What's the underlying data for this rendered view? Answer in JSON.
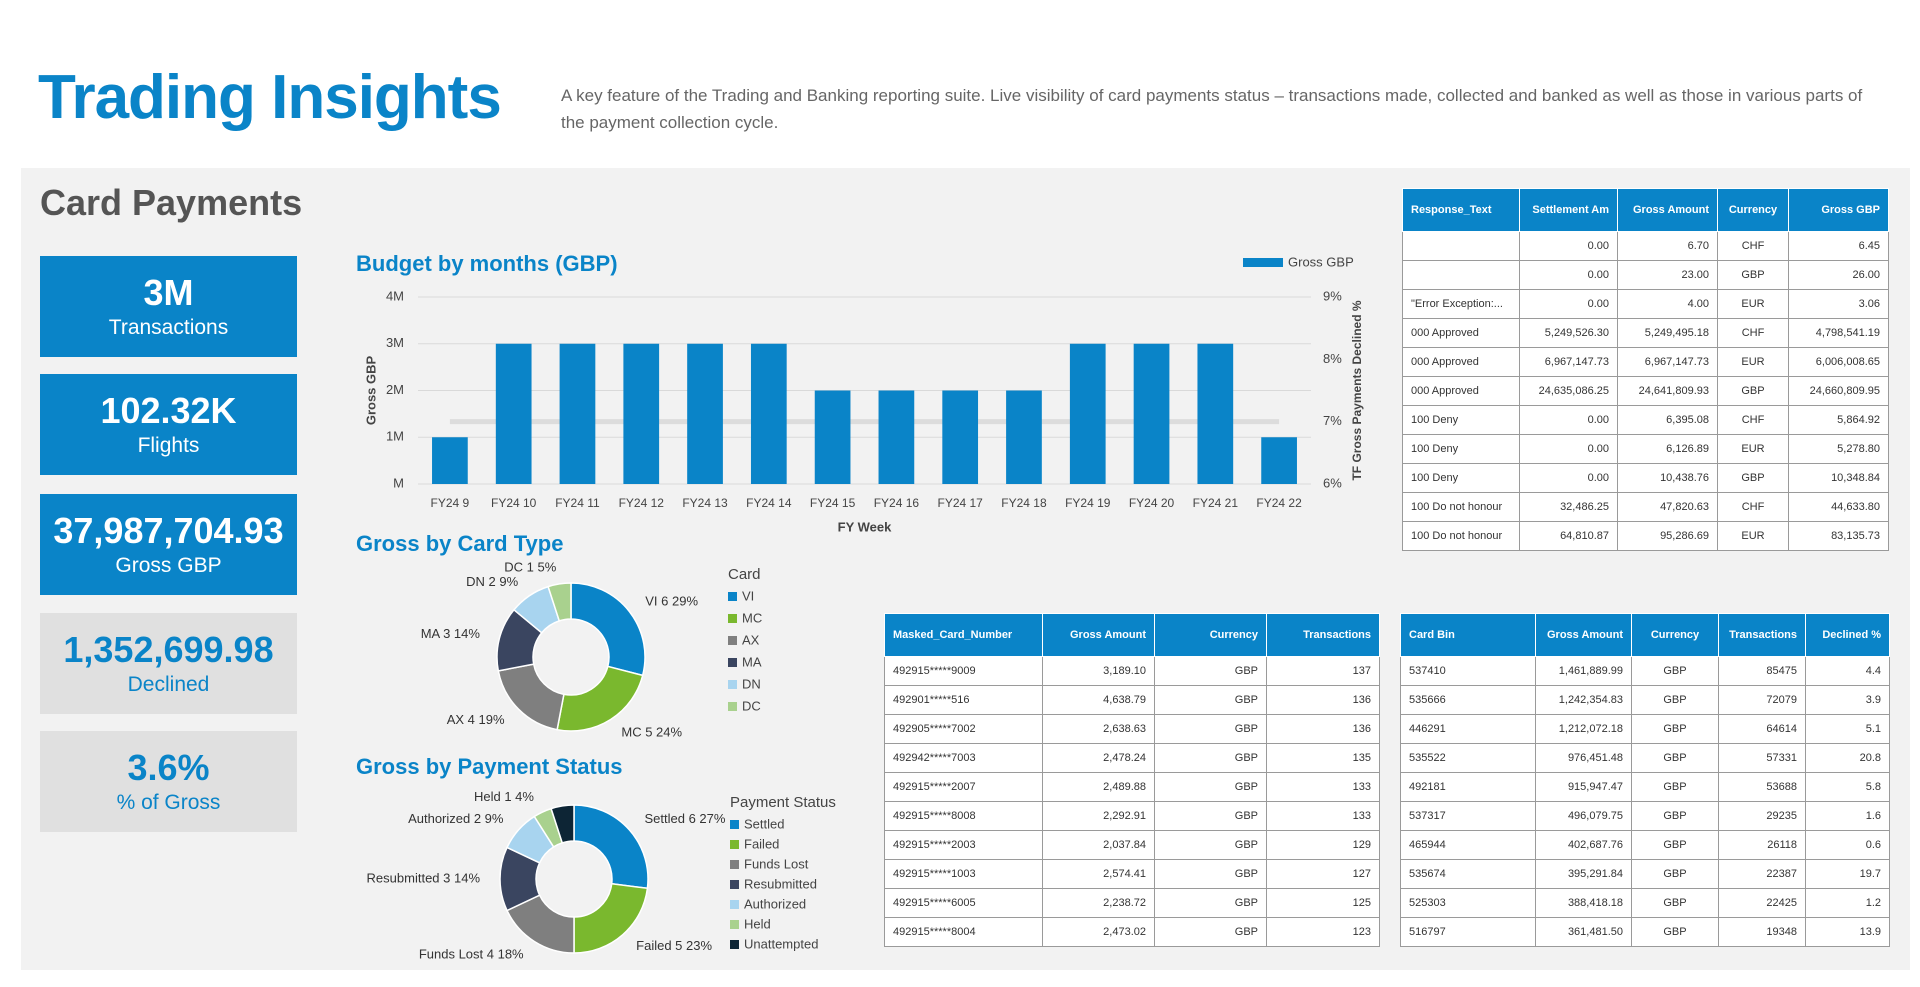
{
  "header": {
    "title": "Trading Insights",
    "description": "A key feature of the Trading and Banking reporting suite. Live visibility of card payments status – transactions made, collected and banked as well as those in various parts of the payment collection cycle."
  },
  "section_title": "Card Payments",
  "kpis": [
    {
      "value": "3M",
      "label": "Transactions"
    },
    {
      "value": "102.32K",
      "label": "Flights"
    },
    {
      "value": "37,987,704.93",
      "label": "Gross GBP"
    },
    {
      "value": "1,352,699.98",
      "label": "Declined"
    },
    {
      "value": "3.6%",
      "label": "% of Gross"
    }
  ],
  "chart_data": [
    {
      "type": "bar",
      "title": "Budget by months (GBP)",
      "categories": [
        "FY24 9",
        "FY24 10",
        "FY24 11",
        "FY24 12",
        "FY24 13",
        "FY24 14",
        "FY24 15",
        "FY24 16",
        "FY24 17",
        "FY24 18",
        "FY24 19",
        "FY24 20",
        "FY24 21",
        "FY24 22"
      ],
      "series": [
        {
          "name": "Gross GBP",
          "color": "#0a84c8",
          "values": [
            1000000,
            3000000,
            3000000,
            3000000,
            3000000,
            3000000,
            2000000,
            2000000,
            2000000,
            2000000,
            3000000,
            3000000,
            3000000,
            1000000
          ]
        },
        {
          "color": "#dcdcdc",
          "axis": "y2",
          "type": "line",
          "values": [
            7,
            7,
            7,
            7,
            7,
            7,
            7,
            7,
            7,
            7,
            7,
            7,
            7,
            7
          ]
        }
      ],
      "x_label": "FY Week",
      "y_label": "Gross GBP",
      "y2_label": "TF Gross Payments Declined %",
      "ylim": [
        0,
        4000000
      ],
      "yticks": [
        {
          "value": 0,
          "label": "M"
        },
        {
          "value": 1000000,
          "label": "1M"
        },
        {
          "value": 2000000,
          "label": "2M"
        },
        {
          "value": 3000000,
          "label": "3M"
        },
        {
          "value": 4000000,
          "label": "4M"
        }
      ],
      "y2lim": [
        6,
        9
      ],
      "y2ticks": [
        {
          "value": 6,
          "label": "6%"
        },
        {
          "value": 7,
          "label": "7%"
        },
        {
          "value": 8,
          "label": "8%"
        },
        {
          "value": 9,
          "label": "9%"
        }
      ],
      "grid": true,
      "legend": "top-right"
    },
    {
      "type": "pie",
      "title": "Gross by Card Type",
      "legend_title": "Card",
      "categories": [
        "VI",
        "MC",
        "AX",
        "MA",
        "DN",
        "DC"
      ],
      "values": [
        29,
        24,
        19,
        14,
        9,
        5
      ],
      "value_labels": [
        "VI 6 29%",
        "MC 5 24%",
        "AX 4 19%",
        "MA 3 14%",
        "DN 2 9%",
        "DC 1 5%"
      ],
      "colors": [
        "#0a84c8",
        "#7ab82e",
        "#7f7f7f",
        "#3a4560",
        "#a8d4ef",
        "#a9d18e"
      ]
    },
    {
      "type": "pie",
      "title": "Gross by Payment Status",
      "legend_title": "Payment Status",
      "categories": [
        "Settled",
        "Failed",
        "Funds Lost",
        "Resubmitted",
        "Authorized",
        "Held",
        "Unattempted"
      ],
      "values": [
        27,
        23,
        18,
        14,
        9,
        4,
        5
      ],
      "value_labels": [
        "Settled 6 27%",
        "Failed 5 23%",
        "Funds Lost 4 18%",
        "Resubmitted 3 14%",
        "Authorized 2 9%",
        "Held 1 4%",
        null
      ],
      "colors": [
        "#0a84c8",
        "#7ab82e",
        "#7f7f7f",
        "#3a4560",
        "#a8d4ef",
        "#a9d18e",
        "#0d2535"
      ]
    }
  ],
  "tables": [
    {
      "columns": [
        "Response_Text",
        "Settlement Am",
        "Gross Amount",
        "Currency",
        "Gross GBP"
      ],
      "rows": [
        [
          null,
          "0.00",
          "6.70",
          "CHF",
          "6.45"
        ],
        [
          null,
          "0.00",
          "23.00",
          "GBP",
          "26.00"
        ],
        [
          "\"Error Exception:...",
          "0.00",
          "4.00",
          "EUR",
          "3.06"
        ],
        [
          "000 Approved",
          "5,249,526.30",
          "5,249,495.18",
          "CHF",
          "4,798,541.19"
        ],
        [
          "000 Approved",
          "6,967,147.73",
          "6,967,147.73",
          "EUR",
          "6,006,008.65"
        ],
        [
          "000 Approved",
          "24,635,086.25",
          "24,641,809.93",
          "GBP",
          "24,660,809.95"
        ],
        [
          "100 Deny",
          "0.00",
          "6,395.08",
          "CHF",
          "5,864.92"
        ],
        [
          "100 Deny",
          "0.00",
          "6,126.89",
          "EUR",
          "5,278.80"
        ],
        [
          "100 Deny",
          "0.00",
          "10,438.76",
          "GBP",
          "10,348.84"
        ],
        [
          "100 Do not honour",
          "32,486.25",
          "47,820.63",
          "CHF",
          "44,633.80"
        ],
        [
          "100 Do not honour",
          "64,810.87",
          "95,286.69",
          "EUR",
          "83,135.73"
        ]
      ]
    },
    {
      "columns": [
        "Masked_Card_Number",
        "Gross Amount",
        "Currency",
        "Transactions"
      ],
      "rows": [
        [
          "492915*****9009",
          "3,189.10",
          "GBP",
          "137"
        ],
        [
          "492901*****516",
          "4,638.79",
          "GBP",
          "136"
        ],
        [
          "492905*****7002",
          "2,638.63",
          "GBP",
          "136"
        ],
        [
          "492942*****7003",
          "2,478.24",
          "GBP",
          "135"
        ],
        [
          "492915*****2007",
          "2,489.88",
          "GBP",
          "133"
        ],
        [
          "492915*****8008",
          "2,292.91",
          "GBP",
          "133"
        ],
        [
          "492915*****2003",
          "2,037.84",
          "GBP",
          "129"
        ],
        [
          "492915*****1003",
          "2,574.41",
          "GBP",
          "127"
        ],
        [
          "492915*****6005",
          "2,238.72",
          "GBP",
          "125"
        ],
        [
          "492915*****8004",
          "2,473.02",
          "GBP",
          "123"
        ]
      ]
    },
    {
      "columns": [
        "Card Bin",
        "Gross Amount",
        "Currency",
        "Transactions",
        "Declined %"
      ],
      "rows": [
        [
          "537410",
          "1,461,889.99",
          "GBP",
          "85475",
          "4.4"
        ],
        [
          "535666",
          "1,242,354.83",
          "GBP",
          "72079",
          "3.9"
        ],
        [
          "446291",
          "1,212,072.18",
          "GBP",
          "64614",
          "5.1"
        ],
        [
          "535522",
          "976,451.48",
          "GBP",
          "57331",
          "20.8"
        ],
        [
          "492181",
          "915,947.47",
          "GBP",
          "53688",
          "5.8"
        ],
        [
          "537317",
          "496,079.75",
          "GBP",
          "29235",
          "1.6"
        ],
        [
          "465944",
          "402,687.76",
          "GBP",
          "26118",
          "0.6"
        ],
        [
          "535674",
          "395,291.84",
          "GBP",
          "22387",
          "19.7"
        ],
        [
          "525303",
          "388,418.18",
          "GBP",
          "22425",
          "1.2"
        ],
        [
          "516797",
          "361,481.50",
          "GBP",
          "19348",
          "13.9"
        ]
      ]
    }
  ]
}
